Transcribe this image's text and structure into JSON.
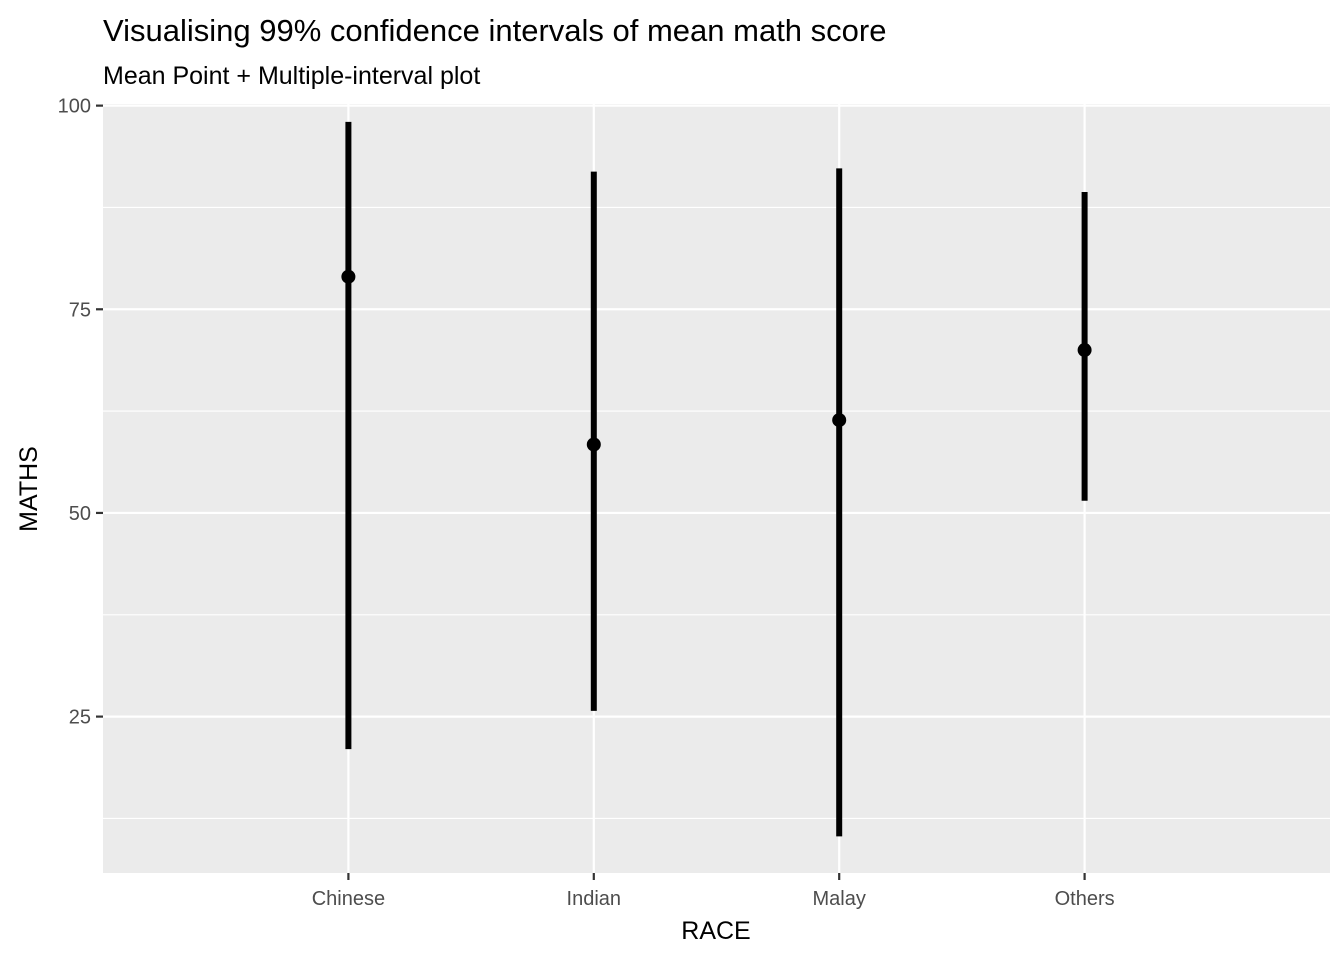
{
  "chart_data": {
    "type": "errorbar",
    "title": "Visualising 99% confidence intervals of mean math score",
    "subtitle": "Mean Point + Multiple-interval plot",
    "xlabel": "RACE",
    "ylabel": "MATHS",
    "categories": [
      "Chinese",
      "Indian",
      "Malay",
      "Others"
    ],
    "series": [
      {
        "mean": [
          79,
          58.4,
          61.4,
          70.0
        ],
        "lower": [
          21.0,
          25.7,
          10.3,
          51.5
        ],
        "upper": [
          98.0,
          91.9,
          92.3,
          89.4
        ]
      }
    ],
    "ylim": [
      5.8,
      100.2
    ],
    "yticks": [
      25,
      50,
      75,
      100
    ],
    "ytick_labels": [
      "25",
      "50",
      "75",
      "100"
    ],
    "grid": true,
    "colors": {
      "panel_background": "#EBEBEB",
      "grid": "#FFFFFF",
      "marks": "#000000",
      "tick_text": "#4D4D4D"
    }
  }
}
